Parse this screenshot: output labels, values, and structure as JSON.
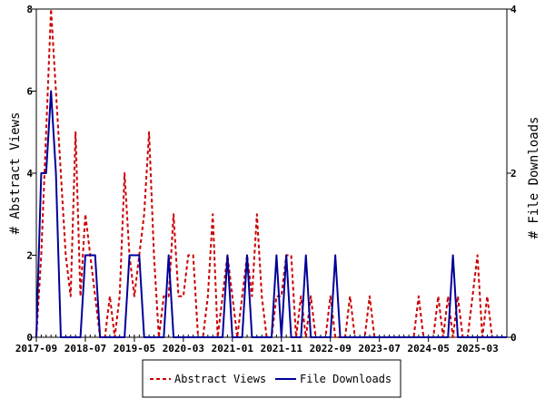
{
  "chart_data": {
    "type": "line",
    "x_tick_labels": [
      "2017-09",
      "2018-07",
      "2019-05",
      "2020-03",
      "2021-01",
      "2021-11",
      "2022-09",
      "2023-07",
      "2024-05",
      "2025-03"
    ],
    "x_range_months": [
      "2017-09",
      "2025-09"
    ],
    "y_left": {
      "label": "# Abstract Views",
      "range": [
        0,
        8
      ],
      "ticks": [
        0,
        2,
        4,
        6,
        8
      ]
    },
    "y_right": {
      "label": "# File Downloads",
      "range": [
        0,
        4
      ],
      "ticks": [
        0,
        2,
        4
      ]
    },
    "series": [
      {
        "name": "Abstract Views",
        "axis": "left",
        "color": "#cc0000",
        "style": "dashed",
        "points": [
          [
            "2017-09",
            0
          ],
          [
            "2017-10",
            2
          ],
          [
            "2017-11",
            5
          ],
          [
            "2017-12",
            8
          ],
          [
            "2018-01",
            6
          ],
          [
            "2018-02",
            4
          ],
          [
            "2018-03",
            2
          ],
          [
            "2018-04",
            1
          ],
          [
            "2018-05",
            5
          ],
          [
            "2018-06",
            1
          ],
          [
            "2018-07",
            3
          ],
          [
            "2018-08",
            2
          ],
          [
            "2018-09",
            1
          ],
          [
            "2018-10",
            0
          ],
          [
            "2018-11",
            0
          ],
          [
            "2018-12",
            1
          ],
          [
            "2019-01",
            0
          ],
          [
            "2019-02",
            1
          ],
          [
            "2019-03",
            4
          ],
          [
            "2019-04",
            2
          ],
          [
            "2019-05",
            1
          ],
          [
            "2019-06",
            2
          ],
          [
            "2019-07",
            3
          ],
          [
            "2019-08",
            5
          ],
          [
            "2019-09",
            2
          ],
          [
            "2019-10",
            0
          ],
          [
            "2019-11",
            1
          ],
          [
            "2019-12",
            1
          ],
          [
            "2020-01",
            3
          ],
          [
            "2020-02",
            1
          ],
          [
            "2020-03",
            1
          ],
          [
            "2020-04",
            2
          ],
          [
            "2020-05",
            2
          ],
          [
            "2020-06",
            0
          ],
          [
            "2020-07",
            0
          ],
          [
            "2020-08",
            1
          ],
          [
            "2020-09",
            3
          ],
          [
            "2020-10",
            0
          ],
          [
            "2020-11",
            1
          ],
          [
            "2020-12",
            2
          ],
          [
            "2021-01",
            1
          ],
          [
            "2021-02",
            0
          ],
          [
            "2021-03",
            1
          ],
          [
            "2021-04",
            2
          ],
          [
            "2021-05",
            1
          ],
          [
            "2021-06",
            3
          ],
          [
            "2021-07",
            1
          ],
          [
            "2021-08",
            0
          ],
          [
            "2021-09",
            0
          ],
          [
            "2021-10",
            1
          ],
          [
            "2021-11",
            1
          ],
          [
            "2021-12",
            2
          ],
          [
            "2022-01",
            2
          ],
          [
            "2022-02",
            0
          ],
          [
            "2022-03",
            1
          ],
          [
            "2022-04",
            0
          ],
          [
            "2022-05",
            1
          ],
          [
            "2022-06",
            0
          ],
          [
            "2022-07",
            0
          ],
          [
            "2022-08",
            0
          ],
          [
            "2022-09",
            1
          ],
          [
            "2022-10",
            0
          ],
          [
            "2022-11",
            0
          ],
          [
            "2022-12",
            0
          ],
          [
            "2023-01",
            1
          ],
          [
            "2023-02",
            0
          ],
          [
            "2023-03",
            0
          ],
          [
            "2023-04",
            0
          ],
          [
            "2023-05",
            1
          ],
          [
            "2023-06",
            0
          ],
          [
            "2023-07",
            0
          ],
          [
            "2023-08",
            0
          ],
          [
            "2023-09",
            0
          ],
          [
            "2023-10",
            0
          ],
          [
            "2023-11",
            0
          ],
          [
            "2023-12",
            0
          ],
          [
            "2024-01",
            0
          ],
          [
            "2024-02",
            0
          ],
          [
            "2024-03",
            1
          ],
          [
            "2024-04",
            0
          ],
          [
            "2024-05",
            0
          ],
          [
            "2024-06",
            0
          ],
          [
            "2024-07",
            1
          ],
          [
            "2024-08",
            0
          ],
          [
            "2024-09",
            1
          ],
          [
            "2024-10",
            0
          ],
          [
            "2024-11",
            1
          ],
          [
            "2024-12",
            0
          ],
          [
            "2025-01",
            0
          ],
          [
            "2025-02",
            1
          ],
          [
            "2025-03",
            2
          ],
          [
            "2025-04",
            0
          ],
          [
            "2025-05",
            1
          ],
          [
            "2025-06",
            0
          ],
          [
            "2025-07",
            0
          ],
          [
            "2025-08",
            0
          ],
          [
            "2025-09",
            0
          ]
        ]
      },
      {
        "name": "File Downloads",
        "axis": "right",
        "color": "#000099",
        "style": "solid",
        "points": [
          [
            "2017-09",
            0
          ],
          [
            "2017-10",
            2
          ],
          [
            "2017-11",
            2
          ],
          [
            "2017-12",
            3
          ],
          [
            "2018-01",
            2
          ],
          [
            "2018-02",
            0
          ],
          [
            "2018-03",
            0
          ],
          [
            "2018-04",
            0
          ],
          [
            "2018-05",
            0
          ],
          [
            "2018-06",
            0
          ],
          [
            "2018-07",
            1
          ],
          [
            "2018-08",
            1
          ],
          [
            "2018-09",
            1
          ],
          [
            "2018-10",
            0
          ],
          [
            "2018-11",
            0
          ],
          [
            "2018-12",
            0
          ],
          [
            "2019-01",
            0
          ],
          [
            "2019-02",
            0
          ],
          [
            "2019-03",
            0
          ],
          [
            "2019-04",
            1
          ],
          [
            "2019-05",
            1
          ],
          [
            "2019-06",
            1
          ],
          [
            "2019-07",
            0
          ],
          [
            "2019-08",
            0
          ],
          [
            "2019-09",
            0
          ],
          [
            "2019-10",
            0
          ],
          [
            "2019-11",
            0
          ],
          [
            "2019-12",
            1
          ],
          [
            "2020-01",
            0
          ],
          [
            "2020-02",
            0
          ],
          [
            "2020-03",
            0
          ],
          [
            "2020-04",
            0
          ],
          [
            "2020-05",
            0
          ],
          [
            "2020-06",
            0
          ],
          [
            "2020-07",
            0
          ],
          [
            "2020-08",
            0
          ],
          [
            "2020-09",
            0
          ],
          [
            "2020-10",
            0
          ],
          [
            "2020-11",
            0
          ],
          [
            "2020-12",
            1
          ],
          [
            "2021-01",
            0
          ],
          [
            "2021-02",
            0
          ],
          [
            "2021-03",
            0
          ],
          [
            "2021-04",
            1
          ],
          [
            "2021-05",
            0
          ],
          [
            "2021-06",
            0
          ],
          [
            "2021-07",
            0
          ],
          [
            "2021-08",
            0
          ],
          [
            "2021-09",
            0
          ],
          [
            "2021-10",
            1
          ],
          [
            "2021-11",
            0
          ],
          [
            "2021-12",
            1
          ],
          [
            "2022-01",
            0
          ],
          [
            "2022-02",
            0
          ],
          [
            "2022-03",
            0
          ],
          [
            "2022-04",
            1
          ],
          [
            "2022-05",
            0
          ],
          [
            "2022-06",
            0
          ],
          [
            "2022-07",
            0
          ],
          [
            "2022-08",
            0
          ],
          [
            "2022-09",
            0
          ],
          [
            "2022-10",
            1
          ],
          [
            "2022-11",
            0
          ],
          [
            "2022-12",
            0
          ],
          [
            "2023-01",
            0
          ],
          [
            "2023-02",
            0
          ],
          [
            "2023-03",
            0
          ],
          [
            "2023-04",
            0
          ],
          [
            "2023-05",
            0
          ],
          [
            "2023-06",
            0
          ],
          [
            "2023-07",
            0
          ],
          [
            "2023-08",
            0
          ],
          [
            "2023-09",
            0
          ],
          [
            "2023-10",
            0
          ],
          [
            "2023-11",
            0
          ],
          [
            "2023-12",
            0
          ],
          [
            "2024-01",
            0
          ],
          [
            "2024-02",
            0
          ],
          [
            "2024-03",
            0
          ],
          [
            "2024-04",
            0
          ],
          [
            "2024-05",
            0
          ],
          [
            "2024-06",
            0
          ],
          [
            "2024-07",
            0
          ],
          [
            "2024-08",
            0
          ],
          [
            "2024-09",
            0
          ],
          [
            "2024-10",
            1
          ],
          [
            "2024-11",
            0
          ],
          [
            "2024-12",
            0
          ],
          [
            "2025-01",
            0
          ],
          [
            "2025-02",
            0
          ],
          [
            "2025-03",
            0
          ],
          [
            "2025-04",
            0
          ],
          [
            "2025-05",
            0
          ],
          [
            "2025-06",
            0
          ],
          [
            "2025-07",
            0
          ],
          [
            "2025-08",
            0
          ],
          [
            "2025-09",
            0
          ]
        ]
      }
    ],
    "legend": {
      "placement": "bottom",
      "entries": [
        "Abstract Views",
        "File Downloads"
      ]
    },
    "grid": false
  }
}
